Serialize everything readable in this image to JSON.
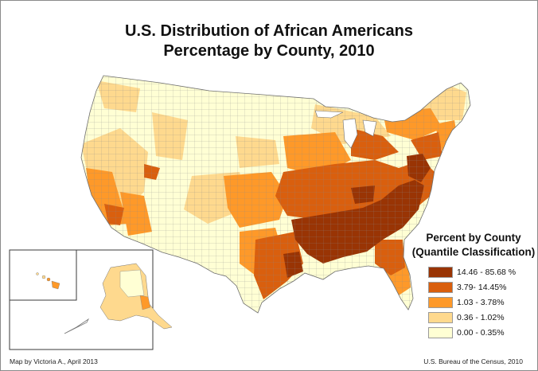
{
  "title_line1": "U.S. Distribution of African Americans",
  "title_line2": "Percentage by County, 2010",
  "legend": {
    "title_line1": "Percent by County",
    "title_line2": "(Quantile Classification)",
    "items": [
      {
        "label": "14.46 - 85.68 %",
        "color": "#993404"
      },
      {
        "label": "3.79- 14.45%",
        "color": "#d95f0e"
      },
      {
        "label": "1.03 - 3.78%",
        "color": "#fe9929"
      },
      {
        "label": "0.36 - 1.02%",
        "color": "#fed98e"
      },
      {
        "label": "0.00 - 0.35%",
        "color": "#ffffd4"
      }
    ]
  },
  "credit_left": "Map by Victoria A., April 2013",
  "credit_right": "U.S. Bureau of the Census, 2010"
}
